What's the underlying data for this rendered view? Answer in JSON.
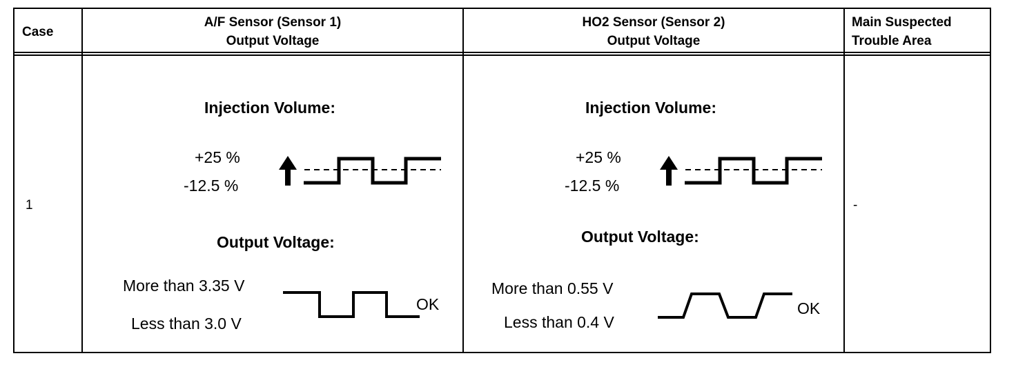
{
  "table": {
    "headers": {
      "case": "Case",
      "af_line1": "A/F Sensor (Sensor 1)",
      "af_line2": "Output Voltage",
      "ho2_line1": "HO2 Sensor (Sensor 2)",
      "ho2_line2": "Output Voltage",
      "trouble_line1": "Main Suspected",
      "trouble_line2": "Trouble Area"
    },
    "row": {
      "case": "1",
      "trouble_area": "-"
    }
  },
  "af_sensor": {
    "injection_title": "Injection Volume:",
    "inj_high": "+25 %",
    "inj_low": "-12.5 %",
    "output_title": "Output Voltage:",
    "out_high": "More than 3.35 V",
    "out_low": "Less than 3.0 V",
    "result": "OK"
  },
  "ho2_sensor": {
    "injection_title": "Injection Volume:",
    "inj_high": "+25 %",
    "inj_low": "-12.5 %",
    "output_title": "Output Voltage:",
    "out_high": "More than 0.55 V",
    "out_low": "Less than 0.4 V",
    "result": "OK"
  },
  "icons": {
    "increase": "up-arrow-icon"
  }
}
